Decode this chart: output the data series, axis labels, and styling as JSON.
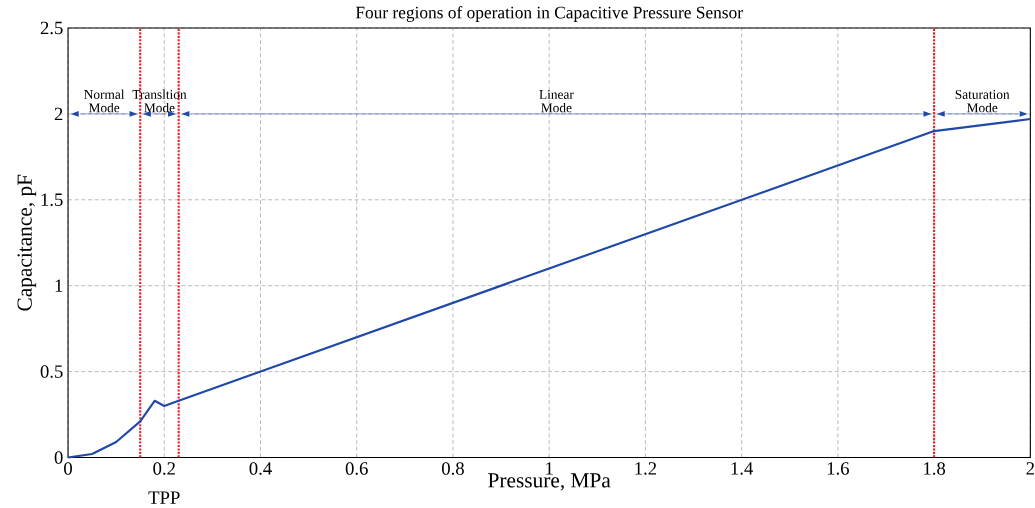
{
  "chart_data": {
    "type": "line",
    "title": "Four regions of operation in Capacitive Pressure Sensor",
    "xlabel": "Pressure, MPa",
    "ylabel": "Capacitance, pF",
    "x": [
      0,
      0.05,
      0.1,
      0.15,
      0.18,
      0.2,
      0.23,
      1.8,
      2.0
    ],
    "series": [
      {
        "color": "#1f48a8",
        "values": [
          0,
          0.02,
          0.09,
          0.21,
          0.33,
          0.3,
          0.33,
          1.9,
          1.97
        ]
      }
    ],
    "xlim": [
      0,
      2
    ],
    "ylim": [
      0,
      2.5
    ],
    "xticks": [
      0,
      0.2,
      0.4,
      0.6,
      0.8,
      1,
      1.2,
      1.4,
      1.6,
      1.8,
      2
    ],
    "yticks": [
      0,
      0.5,
      1,
      1.5,
      2,
      2.5
    ],
    "grid": true,
    "marker": "none",
    "line_style": "solid",
    "ref_lines": [
      {
        "axis": "x",
        "value": 0.15,
        "color": "#e8232f",
        "line_style": "dotted"
      },
      {
        "axis": "x",
        "value": 0.23,
        "color": "#e8232f",
        "line_style": "dotted"
      },
      {
        "axis": "x",
        "value": 1.8,
        "color": "#e8232f",
        "line_style": "dotted"
      }
    ],
    "annotations": [
      "Normal Mode",
      "Transltion Mode",
      "Linear Mode",
      "Saturation Mode",
      "TPP"
    ]
  }
}
